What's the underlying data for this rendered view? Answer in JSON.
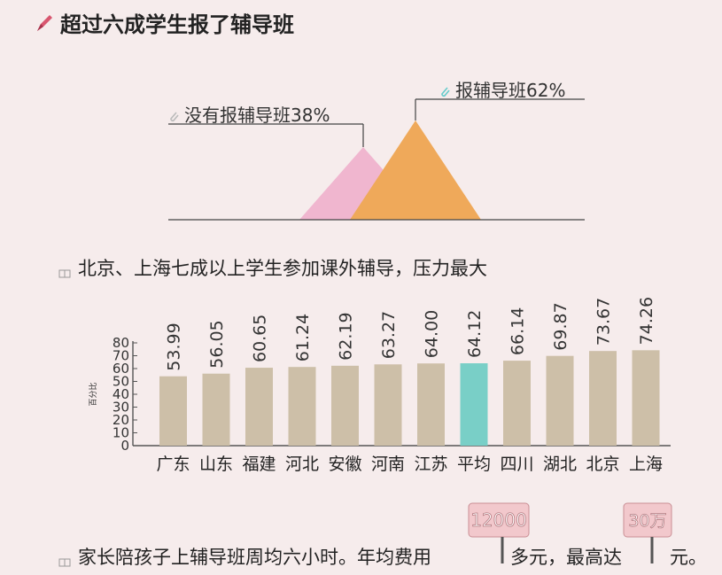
{
  "title": "超过六成学生报了辅导班",
  "triangle_chart": {
    "labels": {
      "no_tutoring": "没有报辅导班38%",
      "tutoring": "报辅导班62%"
    },
    "colors": {
      "no_tutoring": "#f0b6cf",
      "tutoring": "#efa95a",
      "line": "#444444"
    },
    "values": {
      "no_tutoring": 38,
      "tutoring": 62
    }
  },
  "section2": {
    "heading": "北京、上海七成以上学生参加课外辅导，压力最大"
  },
  "chart_data": {
    "type": "bar",
    "ylabel": "百分比",
    "ylim": [
      0,
      80
    ],
    "yticks": [
      "0",
      "10",
      "20",
      "30",
      "40",
      "50",
      "60",
      "70",
      "80"
    ],
    "categories": [
      "广东",
      "山东",
      "福建",
      "河北",
      "安徽",
      "河南",
      "江苏",
      "平均",
      "四川",
      "湖北",
      "北京",
      "上海"
    ],
    "values": [
      53.99,
      56.05,
      60.65,
      61.24,
      62.19,
      63.27,
      64.0,
      64.12,
      66.14,
      69.87,
      73.67,
      74.26
    ],
    "value_labels": [
      "53.99",
      "56.05",
      "60.65",
      "61.24",
      "62.19",
      "63.27",
      "64.00",
      "64.12",
      "66.14",
      "69.87",
      "73.67",
      "74.26"
    ],
    "colors": {
      "default": "#cdbfa8",
      "highlight": "#79cfc7",
      "axis": "#555555"
    },
    "highlight_index": 7
  },
  "section3": {
    "part1": "家长陪孩子上辅导班周均六小时。年均费用",
    "part2": "多元，最高达",
    "part3": "元。",
    "tag1": "12000",
    "tag2": "30万",
    "tag_color": "#f2c8cc"
  }
}
